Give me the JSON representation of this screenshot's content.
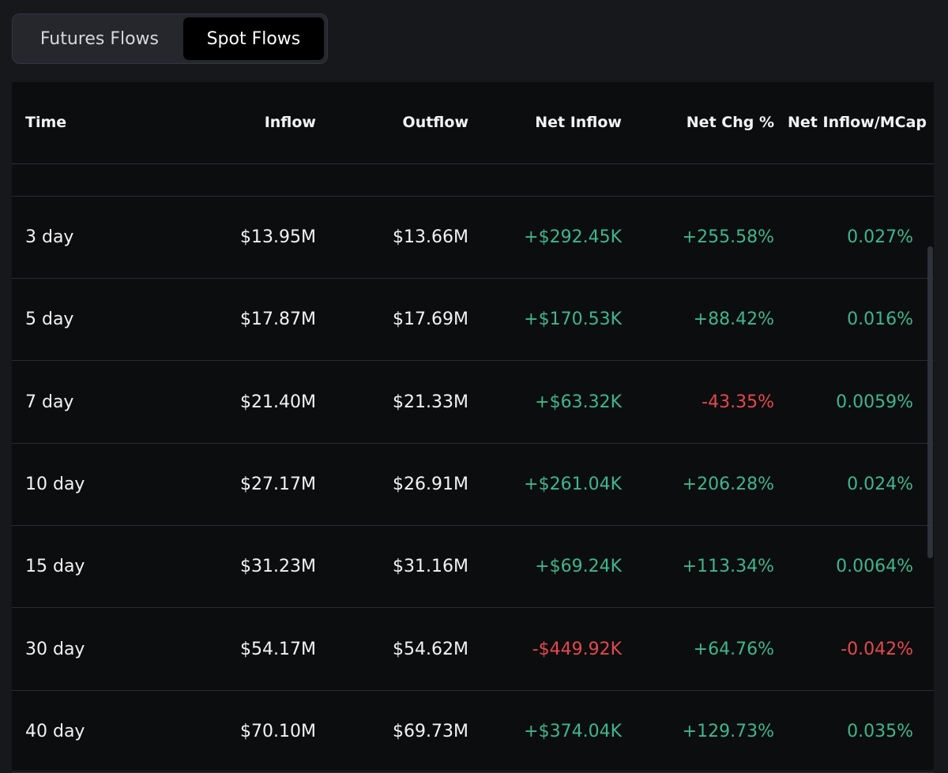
{
  "tabs": [
    {
      "label": "Futures Flows",
      "active": false
    },
    {
      "label": "Spot Flows",
      "active": true
    }
  ],
  "columns": [
    "Time",
    "Inflow",
    "Outflow",
    "Net Inflow",
    "Net Chg %",
    "Net Inflow/MCap"
  ],
  "rows": [
    {
      "time": "3 day",
      "inflow": "$13.95M",
      "outflow": "$13.66M",
      "net": "+$292.45K",
      "net_sign": "pos",
      "chg": "+255.58%",
      "chg_sign": "pos",
      "mcap": "0.027%",
      "mcap_sign": "pos"
    },
    {
      "time": "5 day",
      "inflow": "$17.87M",
      "outflow": "$17.69M",
      "net": "+$170.53K",
      "net_sign": "pos",
      "chg": "+88.42%",
      "chg_sign": "pos",
      "mcap": "0.016%",
      "mcap_sign": "pos"
    },
    {
      "time": "7 day",
      "inflow": "$21.40M",
      "outflow": "$21.33M",
      "net": "+$63.32K",
      "net_sign": "pos",
      "chg": "-43.35%",
      "chg_sign": "neg",
      "mcap": "0.0059%",
      "mcap_sign": "pos"
    },
    {
      "time": "10 day",
      "inflow": "$27.17M",
      "outflow": "$26.91M",
      "net": "+$261.04K",
      "net_sign": "pos",
      "chg": "+206.28%",
      "chg_sign": "pos",
      "mcap": "0.024%",
      "mcap_sign": "pos"
    },
    {
      "time": "15 day",
      "inflow": "$31.23M",
      "outflow": "$31.16M",
      "net": "+$69.24K",
      "net_sign": "pos",
      "chg": "+113.34%",
      "chg_sign": "pos",
      "mcap": "0.0064%",
      "mcap_sign": "pos"
    },
    {
      "time": "30 day",
      "inflow": "$54.17M",
      "outflow": "$54.62M",
      "net": "-$449.92K",
      "net_sign": "neg",
      "chg": "+64.76%",
      "chg_sign": "pos",
      "mcap": "-0.042%",
      "mcap_sign": "neg"
    },
    {
      "time": "40 day",
      "inflow": "$70.10M",
      "outflow": "$69.73M",
      "net": "+$374.04K",
      "net_sign": "pos",
      "chg": "+129.73%",
      "chg_sign": "pos",
      "mcap": "0.035%",
      "mcap_sign": "pos"
    }
  ],
  "colors": {
    "positive": "#3fb68b",
    "negative": "#e5484d",
    "background": "#17181c",
    "table_background": "#0c0d0f"
  }
}
